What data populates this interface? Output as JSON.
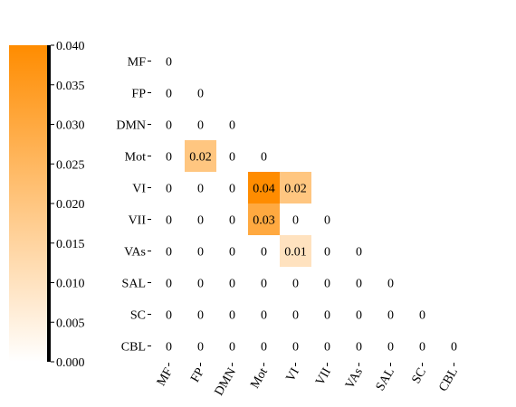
{
  "chart_data": {
    "type": "heatmap",
    "title": "",
    "xlabel": "",
    "ylabel": "",
    "labels": [
      "MF",
      "FP",
      "DMN",
      "Mot",
      "VI",
      "VII",
      "VAs",
      "SAL",
      "SC",
      "CBL"
    ],
    "triangle": "lower",
    "matrix": [
      [
        0
      ],
      [
        0,
        0
      ],
      [
        0,
        0,
        0
      ],
      [
        0,
        0.02,
        0,
        0
      ],
      [
        0,
        0,
        0,
        0.04,
        0.02
      ],
      [
        0,
        0,
        0,
        0.03,
        0,
        0
      ],
      [
        0,
        0,
        0,
        0,
        0.01,
        0,
        0
      ],
      [
        0,
        0,
        0,
        0,
        0,
        0,
        0,
        0
      ],
      [
        0,
        0,
        0,
        0,
        0,
        0,
        0,
        0,
        0
      ],
      [
        0,
        0,
        0,
        0,
        0,
        0,
        0,
        0,
        0,
        0
      ]
    ],
    "cell_labels": [
      [
        "0"
      ],
      [
        "0",
        "0"
      ],
      [
        "0",
        "0",
        "0"
      ],
      [
        "0",
        "0.02",
        "0",
        "0"
      ],
      [
        "0",
        "0",
        "0",
        "0.04",
        "0.02"
      ],
      [
        "0",
        "0",
        "0",
        "0.03",
        "0",
        "0"
      ],
      [
        "0",
        "0",
        "0",
        "0",
        "0.01",
        "0",
        "0"
      ],
      [
        "0",
        "0",
        "0",
        "0",
        "0",
        "0",
        "0",
        "0"
      ],
      [
        "0",
        "0",
        "0",
        "0",
        "0",
        "0",
        "0",
        "0",
        "0"
      ],
      [
        "0",
        "0",
        "0",
        "0",
        "0",
        "0",
        "0",
        "0",
        "0",
        "0"
      ]
    ],
    "colorbar": {
      "range": [
        0,
        0.04
      ],
      "ticks": [
        "0.000",
        "0.005",
        "0.010",
        "0.015",
        "0.020",
        "0.025",
        "0.030",
        "0.035",
        "0.040"
      ],
      "color_low": "#ffffff",
      "color_high": "#ff8c00",
      "placement": "left"
    },
    "x_tick_rotation": -60,
    "grid": false
  }
}
